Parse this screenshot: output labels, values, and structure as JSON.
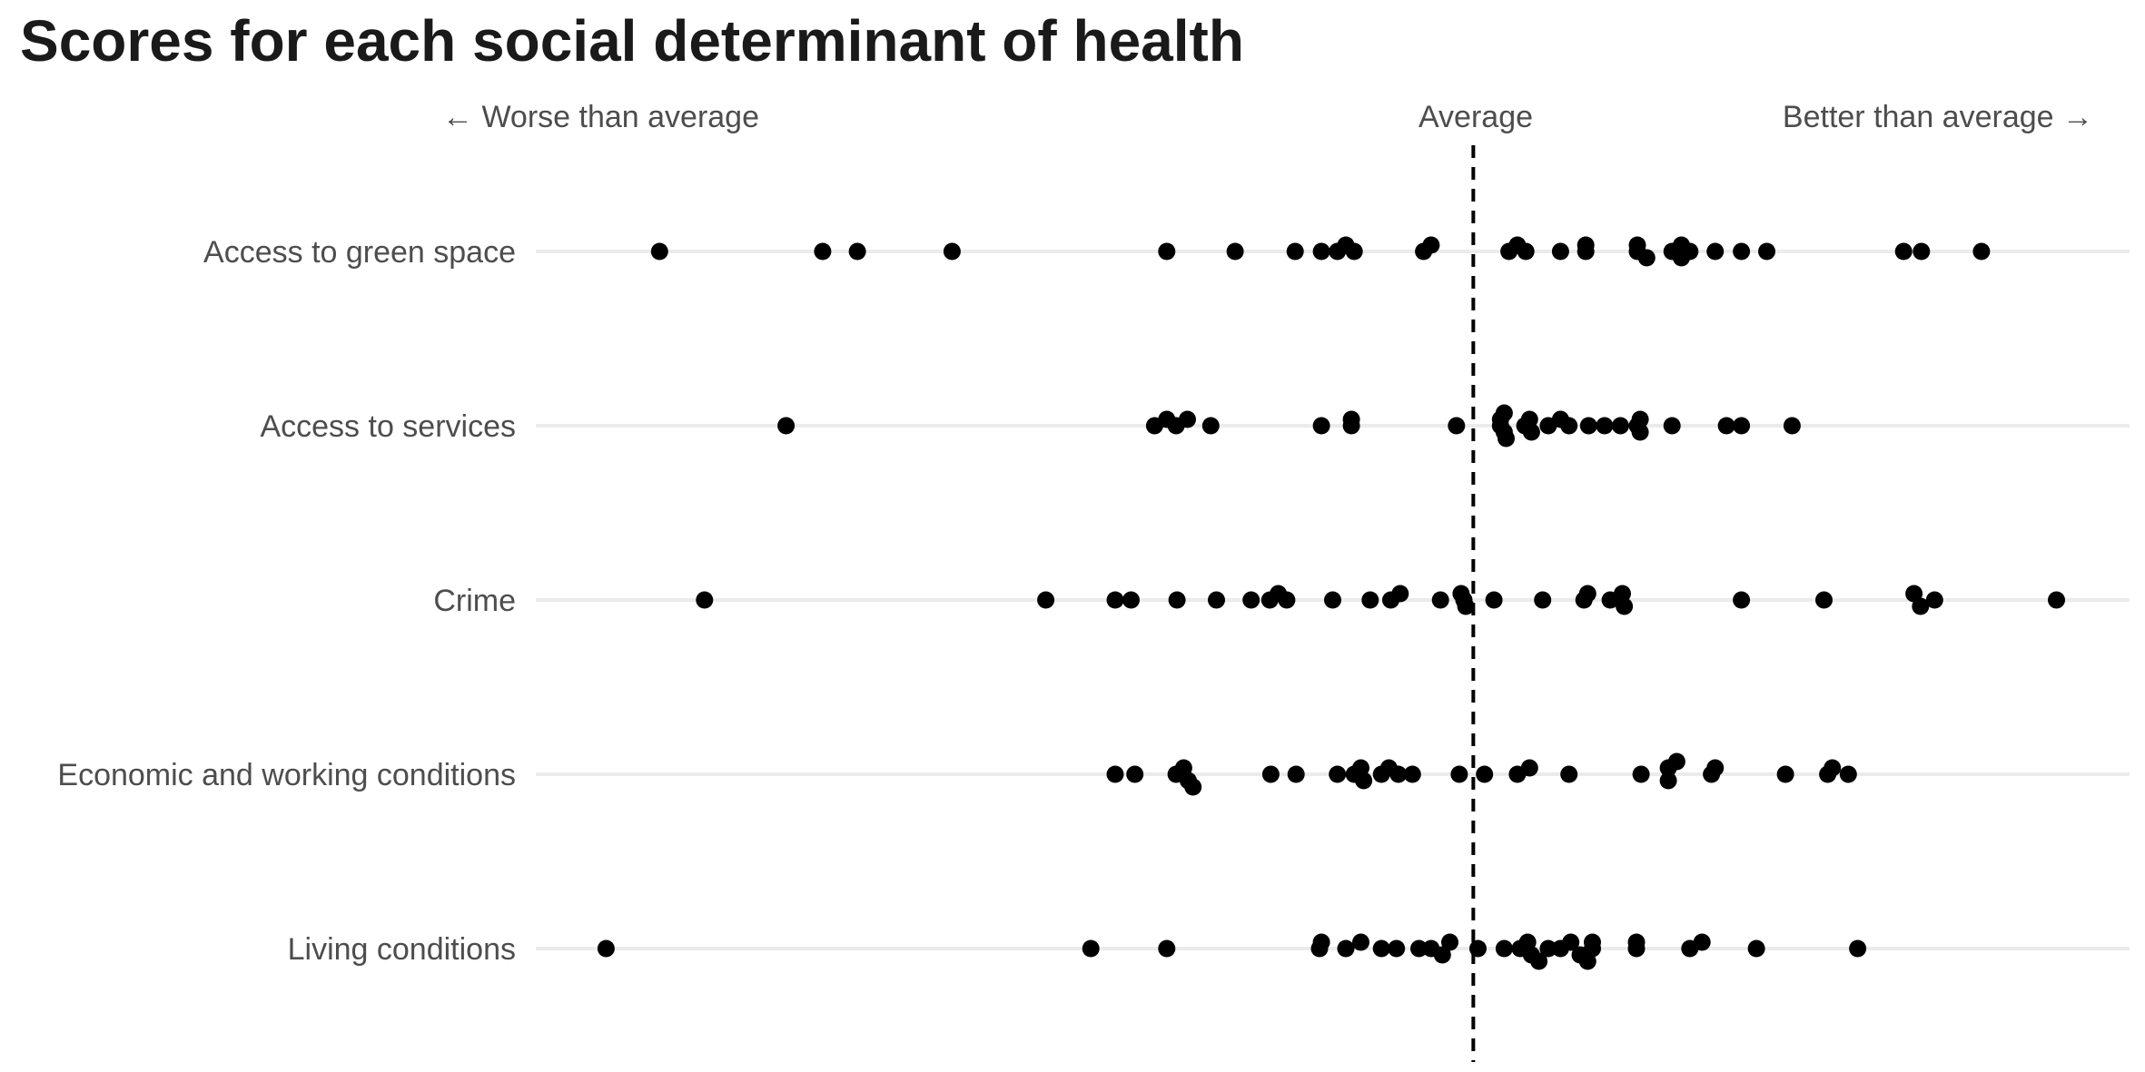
{
  "chart_data": {
    "type": "scatter",
    "title": "Scores for each social determinant of health",
    "direction_labels": {
      "worse": "← Worse than average",
      "average": "Average",
      "better": "Better than average →"
    },
    "average_value": 0,
    "xlim": [
      -1.0,
      0.7
    ],
    "grid": true,
    "legend": "none",
    "point_color": "#000000",
    "categories": [
      "Access to green space",
      "Access to services",
      "Crime",
      "Economic and working conditions",
      "Living conditions"
    ],
    "series": [
      {
        "category": "Access to green space",
        "points": [
          [
            -0.868,
            0
          ],
          [
            -0.694,
            0
          ],
          [
            -0.657,
            0
          ],
          [
            -0.556,
            0
          ],
          [
            -0.327,
            0
          ],
          [
            -0.254,
            0
          ],
          [
            -0.19,
            0
          ],
          [
            -0.162,
            0
          ],
          [
            -0.145,
            0
          ],
          [
            -0.136,
            0.5
          ],
          [
            -0.127,
            0
          ],
          [
            -0.053,
            0
          ],
          [
            -0.045,
            0.5
          ],
          [
            0.038,
            0
          ],
          [
            0.047,
            0.5
          ],
          [
            0.056,
            0
          ],
          [
            0.093,
            0
          ],
          [
            0.12,
            0
          ],
          [
            0.12,
            0.5
          ],
          [
            0.175,
            0.5
          ],
          [
            0.175,
            0
          ],
          [
            0.185,
            -0.5
          ],
          [
            0.212,
            0
          ],
          [
            0.222,
            0.5
          ],
          [
            0.222,
            -0.5
          ],
          [
            0.231,
            0
          ],
          [
            0.258,
            0
          ],
          [
            0.286,
            0
          ],
          [
            0.313,
            0
          ],
          [
            0.459,
            0
          ],
          [
            0.478,
            0
          ],
          [
            0.542,
            0
          ]
        ]
      },
      {
        "category": "Access to services",
        "points": [
          [
            -0.733,
            0
          ],
          [
            -0.34,
            0
          ],
          [
            -0.327,
            0.5
          ],
          [
            -0.317,
            0
          ],
          [
            -0.305,
            0.5
          ],
          [
            -0.28,
            0
          ],
          [
            -0.162,
            0
          ],
          [
            -0.13,
            0
          ],
          [
            -0.13,
            0.5
          ],
          [
            -0.018,
            0
          ],
          [
            0.029,
            0
          ],
          [
            0.029,
            0.5
          ],
          [
            0.033,
            -0.5
          ],
          [
            0.033,
            1.0
          ],
          [
            0.035,
            -1.0
          ],
          [
            0.055,
            0
          ],
          [
            0.06,
            0.5
          ],
          [
            0.062,
            -0.5
          ],
          [
            0.08,
            0
          ],
          [
            0.093,
            0.5
          ],
          [
            0.102,
            0
          ],
          [
            0.123,
            0
          ],
          [
            0.14,
            0
          ],
          [
            0.157,
            0
          ],
          [
            0.175,
            0
          ],
          [
            0.178,
            0.5
          ],
          [
            0.178,
            -0.5
          ],
          [
            0.212,
            0
          ],
          [
            0.27,
            0
          ],
          [
            0.286,
            0
          ],
          [
            0.34,
            0
          ]
        ]
      },
      {
        "category": "Crime",
        "points": [
          [
            -0.82,
            0
          ],
          [
            -0.456,
            0
          ],
          [
            -0.382,
            0
          ],
          [
            -0.365,
            0
          ],
          [
            -0.316,
            0
          ],
          [
            -0.274,
            0
          ],
          [
            -0.237,
            0
          ],
          [
            -0.217,
            0
          ],
          [
            -0.208,
            0.5
          ],
          [
            -0.199,
            0
          ],
          [
            -0.15,
            0
          ],
          [
            -0.11,
            0
          ],
          [
            -0.088,
            0
          ],
          [
            -0.078,
            0.5
          ],
          [
            -0.035,
            0
          ],
          [
            -0.013,
            0.5
          ],
          [
            -0.01,
            0
          ],
          [
            -0.008,
            -0.5
          ],
          [
            0.022,
            0
          ],
          [
            0.074,
            0
          ],
          [
            0.118,
            0
          ],
          [
            0.122,
            0.5
          ],
          [
            0.146,
            0
          ],
          [
            0.159,
            0.5
          ],
          [
            0.161,
            -0.5
          ],
          [
            0.286,
            0
          ],
          [
            0.374,
            0
          ],
          [
            0.47,
            0.5
          ],
          [
            0.477,
            -0.5
          ],
          [
            0.492,
            0
          ],
          [
            0.622,
            0
          ]
        ]
      },
      {
        "category": "Economic and working conditions",
        "points": [
          [
            -0.382,
            0
          ],
          [
            -0.361,
            0
          ],
          [
            -0.317,
            0
          ],
          [
            -0.309,
            0.5
          ],
          [
            -0.304,
            -0.5
          ],
          [
            -0.299,
            -1.0
          ],
          [
            -0.216,
            0
          ],
          [
            -0.189,
            0
          ],
          [
            -0.145,
            0
          ],
          [
            -0.127,
            0
          ],
          [
            -0.12,
            0.5
          ],
          [
            -0.117,
            -0.5
          ],
          [
            -0.098,
            0
          ],
          [
            -0.09,
            0.5
          ],
          [
            -0.08,
            0
          ],
          [
            -0.065,
            0
          ],
          [
            -0.015,
            0
          ],
          [
            0.012,
            0
          ],
          [
            0.047,
            0
          ],
          [
            0.06,
            0.5
          ],
          [
            0.102,
            0
          ],
          [
            0.179,
            0
          ],
          [
            0.208,
            0.5
          ],
          [
            0.208,
            -0.5
          ],
          [
            0.217,
            1.0
          ],
          [
            0.254,
            0
          ],
          [
            0.258,
            0.5
          ],
          [
            0.333,
            0
          ],
          [
            0.378,
            0
          ],
          [
            0.383,
            0.5
          ],
          [
            0.4,
            0
          ]
        ]
      },
      {
        "category": "Living conditions",
        "points": [
          [
            -0.925,
            0
          ],
          [
            -0.408,
            0
          ],
          [
            -0.327,
            0
          ],
          [
            -0.164,
            0
          ],
          [
            -0.162,
            0.5
          ],
          [
            -0.136,
            0
          ],
          [
            -0.12,
            0.5
          ],
          [
            -0.098,
            0
          ],
          [
            -0.082,
            0
          ],
          [
            -0.058,
            0
          ],
          [
            -0.045,
            0
          ],
          [
            -0.033,
            -0.5
          ],
          [
            -0.025,
            0.5
          ],
          [
            0.005,
            0
          ],
          [
            0.033,
            0
          ],
          [
            0.05,
            0
          ],
          [
            0.058,
            0.5
          ],
          [
            0.062,
            -0.5
          ],
          [
            0.07,
            -1.0
          ],
          [
            0.08,
            0
          ],
          [
            0.093,
            0
          ],
          [
            0.104,
            0.5
          ],
          [
            0.114,
            -0.5
          ],
          [
            0.122,
            -1.0
          ],
          [
            0.127,
            0
          ],
          [
            0.127,
            0.5
          ],
          [
            0.174,
            0
          ],
          [
            0.174,
            0.5
          ],
          [
            0.231,
            0
          ],
          [
            0.244,
            0.5
          ],
          [
            0.302,
            0
          ],
          [
            0.41,
            0
          ]
        ]
      }
    ]
  }
}
